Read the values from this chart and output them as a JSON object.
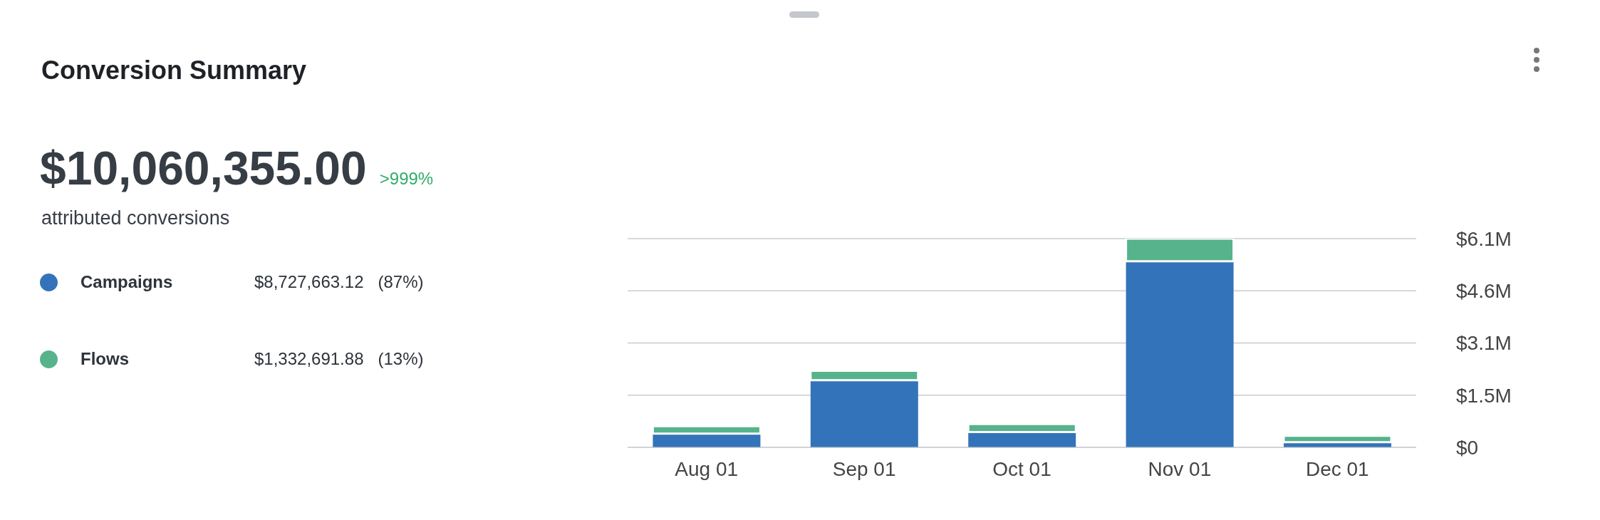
{
  "chart_data": {
    "type": "bar",
    "title": "Conversion Summary",
    "stacked": true,
    "legend": "left",
    "grid": "y",
    "categories": [
      "Aug 01",
      "Sep 01",
      "Oct 01",
      "Nov 01",
      "Dec 01"
    ],
    "series": [
      {
        "name": "Campaigns",
        "color": "#3373b9",
        "values": [
          0.4,
          1.96,
          0.45,
          5.44,
          0.15
        ]
      },
      {
        "name": "Flows",
        "color": "#56b38c",
        "values": [
          0.22,
          0.28,
          0.23,
          0.66,
          0.19
        ]
      }
    ],
    "ylim": [
      0,
      6.1
    ],
    "yticks": [
      {
        "value": 0,
        "label": "$0"
      },
      {
        "value": 1.525,
        "label": "$1.5M"
      },
      {
        "value": 3.05,
        "label": "$3.1M"
      },
      {
        "value": 4.575,
        "label": "$4.6M"
      },
      {
        "value": 6.1,
        "label": "$6.1M"
      }
    ],
    "annotations": [
      "$10,060,355.00",
      ">999%",
      "attributed conversions",
      "$8,727,663.12",
      "(87%)",
      "$1,332,691.88",
      "(13%)"
    ]
  }
}
